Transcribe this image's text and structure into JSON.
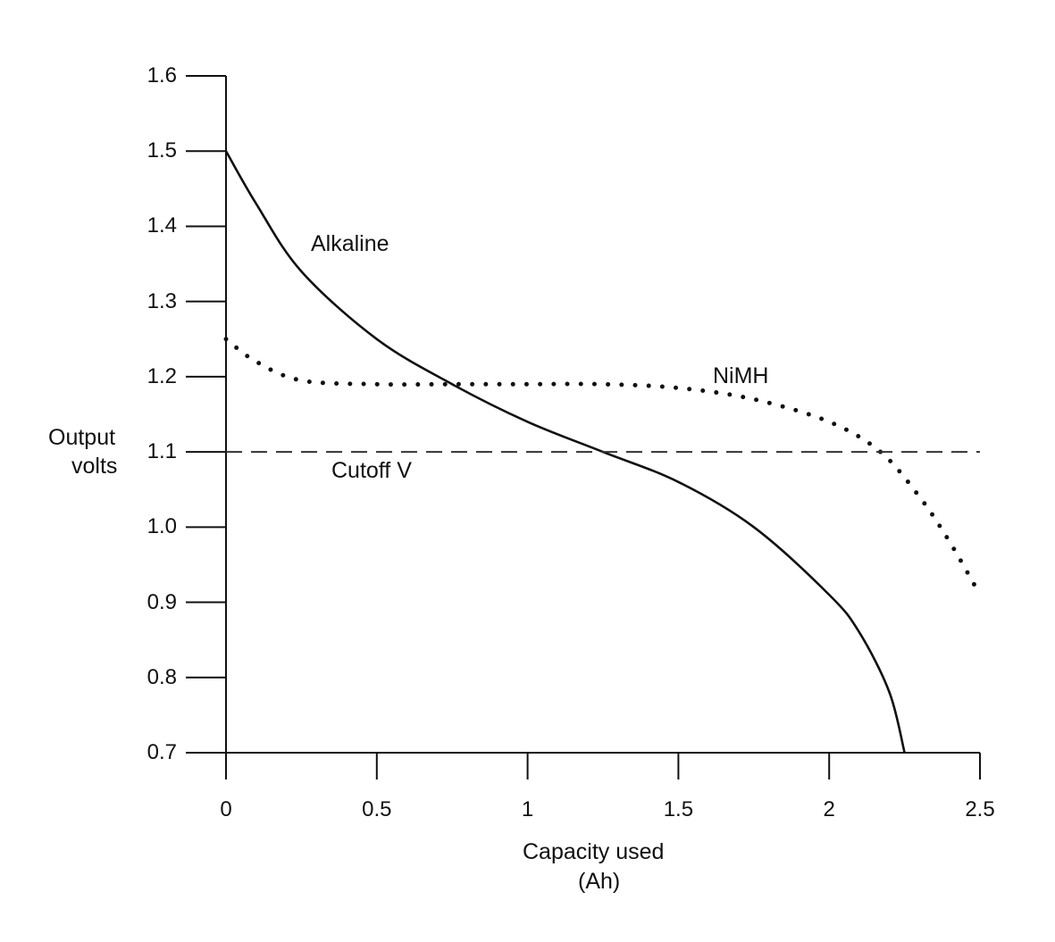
{
  "chart_data": {
    "type": "line",
    "title": "",
    "xlabel": "Capacity used\n(Ah)",
    "xlabel_lines": [
      "Capacity used",
      "(Ah)"
    ],
    "ylabel": "Output volts",
    "ylabel_lines": [
      "Output",
      "volts"
    ],
    "xlim": [
      0,
      2.5
    ],
    "ylim": [
      0.7,
      1.6
    ],
    "x_ticks": [
      0,
      0.5,
      1,
      1.5,
      2,
      2.5
    ],
    "x_tick_labels": [
      "0",
      "0.5",
      "1",
      "1.5",
      "2",
      "2.5"
    ],
    "y_ticks": [
      0.7,
      0.8,
      0.9,
      1.0,
      1.1,
      1.2,
      1.3,
      1.4,
      1.5,
      1.6
    ],
    "y_tick_labels": [
      "0.7",
      "0.8",
      "0.9",
      "1.0",
      "1.1",
      "1.2",
      "1.3",
      "1.4",
      "1.5",
      "1.6"
    ],
    "grid": false,
    "legend": "none (inline labels)",
    "series": [
      {
        "name": "Alkaline",
        "style": "solid",
        "x": [
          0,
          0.1,
          0.25,
          0.5,
          0.75,
          1.0,
          1.25,
          1.5,
          1.75,
          2.0,
          2.1,
          2.2,
          2.25
        ],
        "values": [
          1.5,
          1.43,
          1.34,
          1.25,
          1.19,
          1.14,
          1.1,
          1.06,
          1.0,
          0.91,
          0.86,
          0.78,
          0.7
        ]
      },
      {
        "name": "NiMH",
        "style": "dotted",
        "x": [
          0,
          0.1,
          0.25,
          0.5,
          0.75,
          1.0,
          1.25,
          1.5,
          1.75,
          2.0,
          2.17,
          2.3,
          2.4,
          2.5
        ],
        "values": [
          1.25,
          1.22,
          1.195,
          1.19,
          1.19,
          1.19,
          1.19,
          1.185,
          1.17,
          1.14,
          1.1,
          1.04,
          0.98,
          0.91
        ]
      },
      {
        "name": "Cutoff V",
        "style": "dashed",
        "x": [
          0,
          2.5
        ],
        "values": [
          1.1,
          1.1
        ]
      }
    ],
    "annotations": [
      {
        "text": "Alkaline",
        "x": 0.28,
        "y": 1.39
      },
      {
        "text": "NiMH",
        "x": 1.62,
        "y": 1.2
      },
      {
        "text": "Cutoff V",
        "x": 0.35,
        "y": 1.08
      }
    ]
  }
}
